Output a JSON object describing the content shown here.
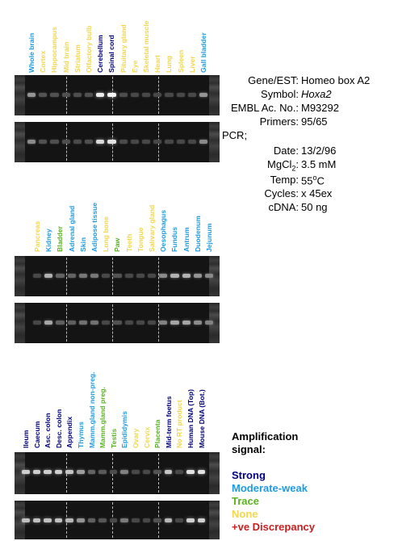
{
  "info": {
    "gene_key": "Gene/EST:",
    "gene_val": "Homeo box A2",
    "symbol_key": "Symbol:",
    "symbol_val": "Hoxa2",
    "embl_key": "EMBL Ac. No.:",
    "embl_val": "M93292",
    "primers_key": "Primers:",
    "primers_val": "95/65",
    "pcr_key": "PCR;",
    "date_key": "Date:",
    "date_val": "13/2/96",
    "mgcl_key": "MgCl",
    "mgcl_sub": "2",
    "mgcl_colon": ":",
    "mgcl_val": "3.5 mM",
    "temp_key": "Temp:",
    "temp_val": "55",
    "temp_sup": "o",
    "temp_unit": "C",
    "cycles_key": "Cycles:",
    "cycles_val": "x 45ex",
    "cdna_key": "cDNA:",
    "cdna_val": "50 ng"
  },
  "legend": {
    "title1": "Amplification",
    "title2": "signal:",
    "strong": "Strong",
    "moderate": "Moderate-weak",
    "trace": "Trace",
    "none": "None",
    "discrepancy": "+ve Discrepancy"
  },
  "colors": {
    "strong": "#00007f",
    "moderate": "#1e9be0",
    "trace": "#59b320",
    "none": "#f2d64d",
    "discrepancy": "#c81e1e"
  },
  "panel1": {
    "lanes": [
      {
        "label": "Whole brain",
        "cat": "moderate",
        "b": 0.45
      },
      {
        "label": "Cortex",
        "cat": "none",
        "b": 0.12
      },
      {
        "label": "Hippocampus",
        "cat": "none",
        "b": 0.1
      },
      {
        "label": "Mid brain",
        "cat": "none",
        "b": 0.1
      },
      {
        "label": "Striatum",
        "cat": "none",
        "b": 0.08
      },
      {
        "label": "Olfactory bulb",
        "cat": "none",
        "b": 0.1
      },
      {
        "label": "Cerebellum",
        "cat": "strong",
        "b": 0.9
      },
      {
        "label": "Spinal cord",
        "cat": "strong",
        "b": 0.95
      },
      {
        "label": "Pituitary gland",
        "cat": "none",
        "b": 0.08
      },
      {
        "label": "Eye",
        "cat": "none",
        "b": 0.06
      },
      {
        "label": "Skeletal muscle",
        "cat": "none",
        "b": 0.06
      },
      {
        "label": "Heart",
        "cat": "none",
        "b": 0.06
      },
      {
        "label": "Lung",
        "cat": "none",
        "b": 0.06
      },
      {
        "label": "Spleen",
        "cat": "none",
        "b": 0.06
      },
      {
        "label": "Liver",
        "cat": "none",
        "b": 0.06
      },
      {
        "label": "Gall bladder",
        "cat": "moderate",
        "b": 0.45
      }
    ]
  },
  "panel2": {
    "lanes": [
      {
        "label": "Pancreas",
        "cat": "none",
        "b": 0.06
      },
      {
        "label": "Kidney",
        "cat": "moderate",
        "b": 0.6
      },
      {
        "label": "Bladder",
        "cat": "trace",
        "b": 0.2
      },
      {
        "label": "Adrenal gland",
        "cat": "moderate",
        "b": 0.2
      },
      {
        "label": "Skin",
        "cat": "moderate",
        "b": 0.3
      },
      {
        "label": "Adipose tissue",
        "cat": "moderate",
        "b": 0.3
      },
      {
        "label": "Long bone",
        "cat": "none",
        "b": 0.06
      },
      {
        "label": "Paw",
        "cat": "trace",
        "b": 0.12
      },
      {
        "label": "Teeth",
        "cat": "none",
        "b": 0.06
      },
      {
        "label": "Tongue",
        "cat": "none",
        "b": 0.06
      },
      {
        "label": "Salivary gland",
        "cat": "none",
        "b": 0.06
      },
      {
        "label": "Oesophagus",
        "cat": "moderate",
        "b": 0.4
      },
      {
        "label": "Fundus",
        "cat": "moderate",
        "b": 0.6
      },
      {
        "label": "Antrum",
        "cat": "moderate",
        "b": 0.6
      },
      {
        "label": "Duodenum",
        "cat": "moderate",
        "b": 0.45
      },
      {
        "label": "Jejunum",
        "cat": "moderate",
        "b": 0.4
      }
    ]
  },
  "panel3": {
    "lanes": [
      {
        "label": "Ileum",
        "cat": "strong",
        "b": 0.75
      },
      {
        "label": "Caecum",
        "cat": "strong",
        "b": 0.75
      },
      {
        "label": "Asc. colon",
        "cat": "strong",
        "b": 0.75
      },
      {
        "label": "Desc. colon",
        "cat": "strong",
        "b": 0.75
      },
      {
        "label": "Appendix",
        "cat": "strong",
        "b": 0.7
      },
      {
        "label": "Thymus",
        "cat": "moderate",
        "b": 0.5
      },
      {
        "label": "Mamm.gland non-preg.",
        "cat": "moderate",
        "b": 0.2
      },
      {
        "label": "Mamm.gland preg.",
        "cat": "trace",
        "b": 0.15
      },
      {
        "label": "Testis",
        "cat": "trace",
        "b": 0.08
      },
      {
        "label": "Epididymis",
        "cat": "moderate",
        "b": 0.35
      },
      {
        "label": "Ovary",
        "cat": "none",
        "b": 0.06
      },
      {
        "label": "Cervix",
        "cat": "none",
        "b": 0.06
      },
      {
        "label": "Placenta",
        "cat": "trace",
        "b": 0.12
      },
      {
        "label": "Mid-term foetus",
        "cat": "strong",
        "b": 0.7
      },
      {
        "label": "No RT product",
        "cat": "none",
        "b": 0.06
      },
      {
        "label": "Human DNA (Top)",
        "cat": "strong",
        "b": 0.85
      },
      {
        "label": "Mouse DNA (Bot.)",
        "cat": "strong",
        "b": 0.85
      }
    ]
  }
}
